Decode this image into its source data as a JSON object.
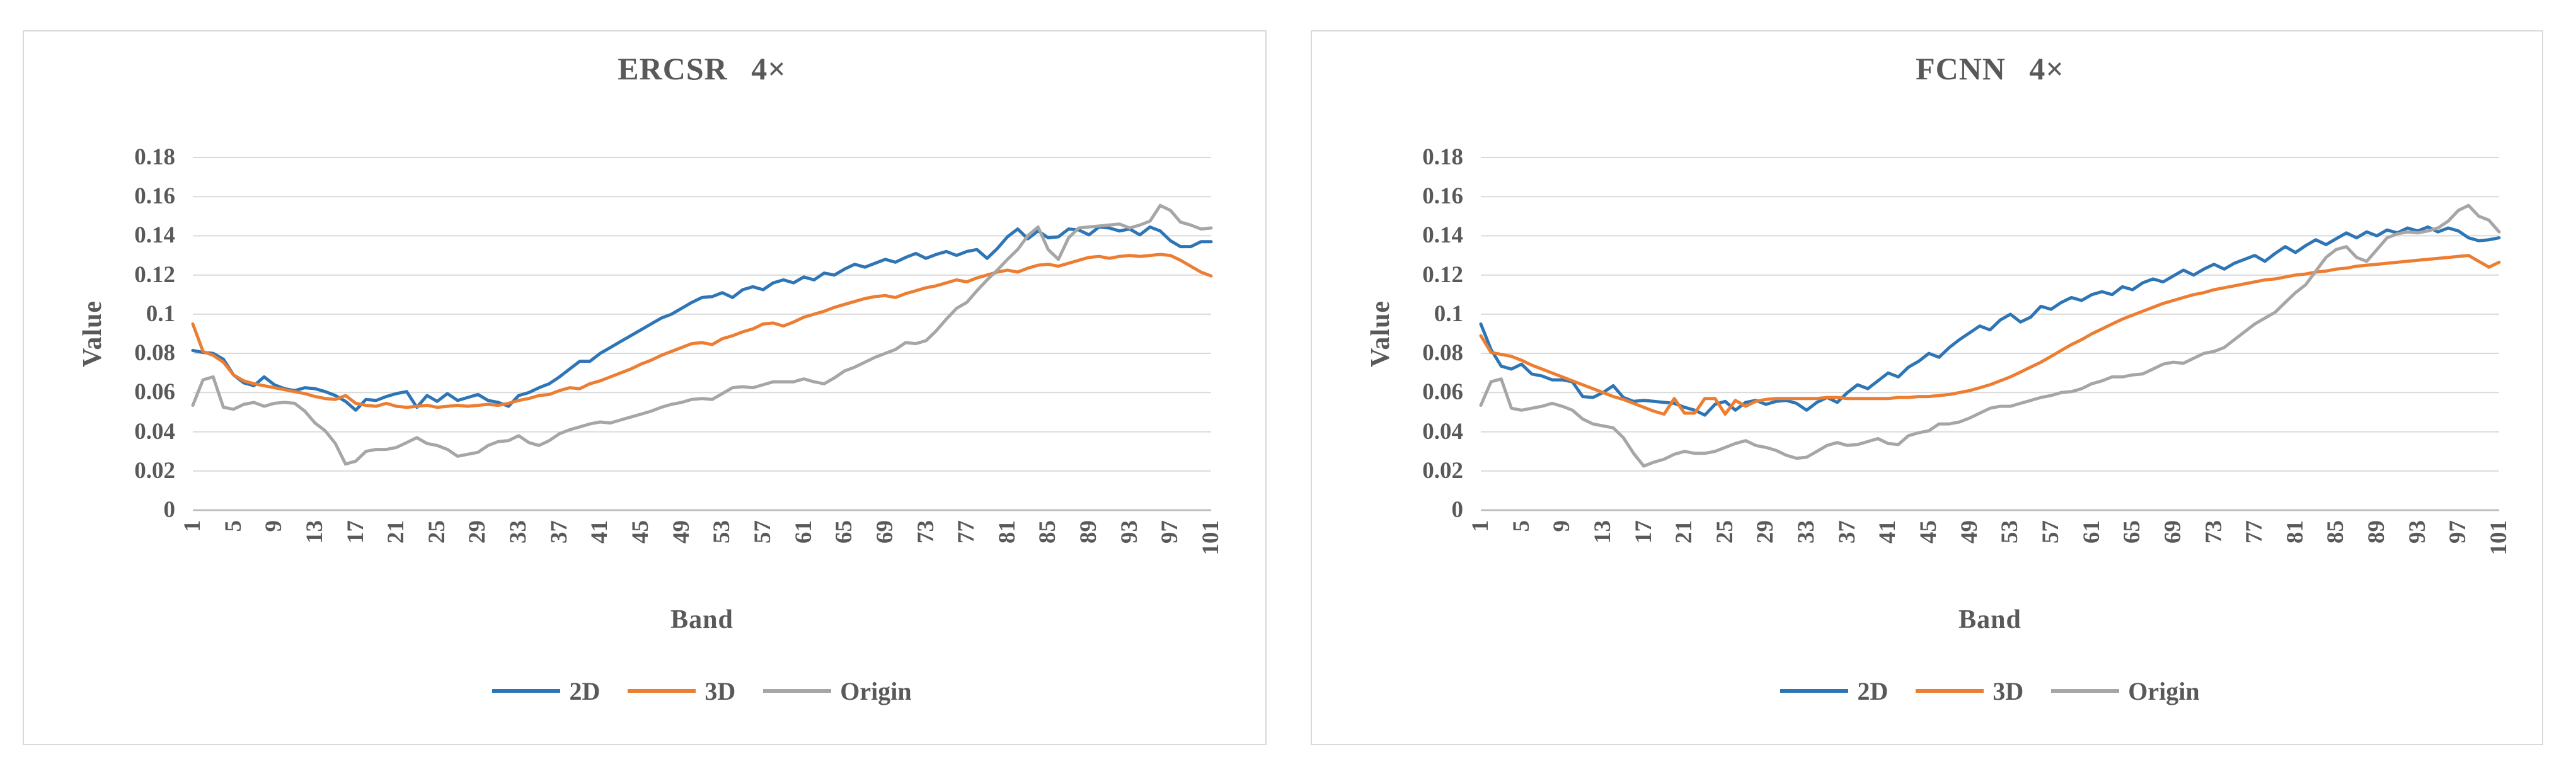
{
  "styles": {
    "text_color": "#595959",
    "gridline_color": "#D9D9D9",
    "axis_line_color": "#BFBFBF",
    "panel_border_color": "#D9D9D9",
    "series_colors": {
      "2D": "#2E75B6",
      "3D": "#ED7D31",
      "Origin": "#A6A6A6"
    }
  },
  "chart_data": [
    {
      "type": "line",
      "title": "ERCSR 4×",
      "xlabel": "Band",
      "ylabel": "Value",
      "x_start": 1,
      "x_end": 101,
      "ylim": [
        0,
        0.18
      ],
      "y_tick_step": 0.02,
      "grid": "horizontal",
      "legend_position": "bottom",
      "y_tick_labels": [
        "0.18",
        "0.16",
        "0.14",
        "0.12",
        "0.1",
        "0.08",
        "0.06",
        "0.04",
        "0.02",
        "0"
      ],
      "x_tick_labels": [
        "1",
        "5",
        "9",
        "13",
        "17",
        "21",
        "25",
        "29",
        "33",
        "37",
        "41",
        "45",
        "49",
        "53",
        "57",
        "61",
        "65",
        "69",
        "73",
        "77",
        "81",
        "85",
        "89",
        "93",
        "97",
        "101"
      ],
      "series": [
        {
          "name": "2D",
          "color": "#2E75B6",
          "values": [
            0.0815,
            0.0805,
            0.08,
            0.077,
            0.069,
            0.065,
            0.0635,
            0.068,
            0.064,
            0.062,
            0.061,
            0.0625,
            0.062,
            0.0605,
            0.0585,
            0.0555,
            0.051,
            0.0565,
            0.056,
            0.058,
            0.0595,
            0.0605,
            0.0525,
            0.0585,
            0.0555,
            0.0595,
            0.056,
            0.0575,
            0.059,
            0.056,
            0.055,
            0.053,
            0.0585,
            0.06,
            0.0625,
            0.0645,
            0.068,
            0.072,
            0.076,
            0.076,
            0.08,
            0.083,
            0.086,
            0.089,
            0.092,
            0.095,
            0.098,
            0.1,
            0.103,
            0.106,
            0.1085,
            0.109,
            0.111,
            0.1085,
            0.1125,
            0.114,
            0.1125,
            0.116,
            0.1175,
            0.116,
            0.119,
            0.1175,
            0.121,
            0.12,
            0.123,
            0.1255,
            0.124,
            0.126,
            0.128,
            0.1265,
            0.129,
            0.131,
            0.1285,
            0.1305,
            0.132,
            0.13,
            0.132,
            0.133,
            0.1285,
            0.1335,
            0.1395,
            0.1435,
            0.1385,
            0.1425,
            0.139,
            0.1395,
            0.1435,
            0.143,
            0.1405,
            0.1445,
            0.144,
            0.1425,
            0.1435,
            0.1405,
            0.1445,
            0.1425,
            0.1375,
            0.1345,
            0.1345,
            0.137,
            0.137
          ]
        },
        {
          "name": "3D",
          "color": "#ED7D31",
          "values": [
            0.095,
            0.081,
            0.079,
            0.0755,
            0.069,
            0.066,
            0.0645,
            0.0635,
            0.0625,
            0.0615,
            0.0605,
            0.0595,
            0.058,
            0.057,
            0.0565,
            0.0585,
            0.0545,
            0.0535,
            0.053,
            0.0545,
            0.053,
            0.0525,
            0.053,
            0.0535,
            0.0525,
            0.053,
            0.0535,
            0.053,
            0.0535,
            0.054,
            0.0535,
            0.0545,
            0.056,
            0.057,
            0.0585,
            0.059,
            0.061,
            0.0625,
            0.062,
            0.0645,
            0.066,
            0.068,
            0.07,
            0.072,
            0.0745,
            0.0765,
            0.079,
            0.081,
            0.083,
            0.085,
            0.0855,
            0.0845,
            0.0875,
            0.089,
            0.091,
            0.0925,
            0.095,
            0.0955,
            0.094,
            0.096,
            0.0985,
            0.1,
            0.1015,
            0.1035,
            0.105,
            0.1065,
            0.108,
            0.109,
            0.1095,
            0.1085,
            0.1105,
            0.112,
            0.1135,
            0.1145,
            0.116,
            0.1175,
            0.1165,
            0.1185,
            0.12,
            0.1215,
            0.1225,
            0.1215,
            0.1235,
            0.125,
            0.1255,
            0.1245,
            0.126,
            0.1275,
            0.129,
            0.1295,
            0.1285,
            0.1295,
            0.13,
            0.1295,
            0.13,
            0.1305,
            0.13,
            0.1275,
            0.1245,
            0.1215,
            0.1195
          ]
        },
        {
          "name": "Origin",
          "color": "#A6A6A6",
          "values": [
            0.0535,
            0.0665,
            0.068,
            0.0525,
            0.0515,
            0.054,
            0.055,
            0.053,
            0.0545,
            0.055,
            0.0545,
            0.0505,
            0.0445,
            0.0405,
            0.034,
            0.0235,
            0.025,
            0.03,
            0.031,
            0.031,
            0.032,
            0.0345,
            0.037,
            0.034,
            0.033,
            0.031,
            0.0275,
            0.0285,
            0.0295,
            0.033,
            0.035,
            0.0355,
            0.038,
            0.0345,
            0.033,
            0.0355,
            0.039,
            0.041,
            0.0425,
            0.044,
            0.045,
            0.0445,
            0.046,
            0.0475,
            0.049,
            0.0505,
            0.0525,
            0.054,
            0.055,
            0.0565,
            0.057,
            0.0565,
            0.0595,
            0.0625,
            0.063,
            0.0625,
            0.064,
            0.0655,
            0.0655,
            0.0655,
            0.067,
            0.0655,
            0.0645,
            0.0675,
            0.071,
            0.073,
            0.0755,
            0.078,
            0.08,
            0.082,
            0.0855,
            0.085,
            0.0865,
            0.0915,
            0.0975,
            0.103,
            0.106,
            0.112,
            0.1175,
            0.1225,
            0.128,
            0.133,
            0.14,
            0.1445,
            0.133,
            0.128,
            0.139,
            0.144,
            0.1445,
            0.145,
            0.1455,
            0.146,
            0.144,
            0.1455,
            0.1475,
            0.1555,
            0.153,
            0.147,
            0.1455,
            0.1435,
            0.144
          ]
        }
      ]
    },
    {
      "type": "line",
      "title": "FCNN 4×",
      "xlabel": "Band",
      "ylabel": "Value",
      "x_start": 1,
      "x_end": 101,
      "ylim": [
        0,
        0.18
      ],
      "y_tick_step": 0.02,
      "grid": "horizontal",
      "legend_position": "bottom",
      "y_tick_labels": [
        "0.18",
        "0.16",
        "0.14",
        "0.12",
        "0.1",
        "0.08",
        "0.06",
        "0.04",
        "0.02",
        "0"
      ],
      "x_tick_labels": [
        "1",
        "5",
        "9",
        "13",
        "17",
        "21",
        "25",
        "29",
        "33",
        "37",
        "41",
        "45",
        "49",
        "53",
        "57",
        "61",
        "65",
        "69",
        "73",
        "77",
        "81",
        "85",
        "89",
        "93",
        "97",
        "101"
      ],
      "series": [
        {
          "name": "2D",
          "color": "#2E75B6",
          "values": [
            0.095,
            0.082,
            0.0735,
            0.072,
            0.0745,
            0.0695,
            0.0685,
            0.0665,
            0.0665,
            0.0655,
            0.058,
            0.0575,
            0.06,
            0.0635,
            0.0575,
            0.0555,
            0.056,
            0.0555,
            0.055,
            0.0545,
            0.0525,
            0.051,
            0.0485,
            0.054,
            0.0555,
            0.051,
            0.055,
            0.056,
            0.054,
            0.0555,
            0.056,
            0.0545,
            0.051,
            0.055,
            0.0575,
            0.055,
            0.06,
            0.064,
            0.062,
            0.066,
            0.07,
            0.068,
            0.073,
            0.076,
            0.08,
            0.078,
            0.083,
            0.087,
            0.0905,
            0.094,
            0.092,
            0.097,
            0.1,
            0.096,
            0.0985,
            0.104,
            0.1025,
            0.106,
            0.1085,
            0.107,
            0.11,
            0.1115,
            0.11,
            0.114,
            0.1125,
            0.116,
            0.118,
            0.1165,
            0.1195,
            0.1225,
            0.12,
            0.123,
            0.1255,
            0.123,
            0.126,
            0.128,
            0.13,
            0.127,
            0.131,
            0.1345,
            0.1315,
            0.135,
            0.138,
            0.1355,
            0.1385,
            0.1415,
            0.139,
            0.142,
            0.14,
            0.143,
            0.1415,
            0.144,
            0.1425,
            0.1445,
            0.142,
            0.144,
            0.1425,
            0.139,
            0.1375,
            0.138,
            0.139
          ]
        },
        {
          "name": "3D",
          "color": "#ED7D31",
          "values": [
            0.089,
            0.0805,
            0.0795,
            0.0785,
            0.0765,
            0.074,
            0.072,
            0.07,
            0.068,
            0.066,
            0.064,
            0.062,
            0.06,
            0.058,
            0.0565,
            0.0545,
            0.0525,
            0.0505,
            0.049,
            0.057,
            0.0495,
            0.0495,
            0.057,
            0.057,
            0.049,
            0.056,
            0.053,
            0.0555,
            0.0565,
            0.057,
            0.057,
            0.057,
            0.057,
            0.057,
            0.0575,
            0.0575,
            0.057,
            0.057,
            0.057,
            0.057,
            0.057,
            0.0575,
            0.0575,
            0.058,
            0.058,
            0.0585,
            0.059,
            0.06,
            0.061,
            0.0625,
            0.064,
            0.066,
            0.068,
            0.0705,
            0.073,
            0.0755,
            0.0785,
            0.0815,
            0.0845,
            0.087,
            0.09,
            0.0925,
            0.095,
            0.0975,
            0.0995,
            0.1015,
            0.1035,
            0.1055,
            0.107,
            0.1085,
            0.11,
            0.111,
            0.1125,
            0.1135,
            0.1145,
            0.1155,
            0.1165,
            0.1175,
            0.118,
            0.119,
            0.12,
            0.1205,
            0.1215,
            0.122,
            0.123,
            0.1235,
            0.1245,
            0.125,
            0.1255,
            0.126,
            0.1265,
            0.127,
            0.1275,
            0.128,
            0.1285,
            0.129,
            0.1295,
            0.13,
            0.127,
            0.124,
            0.1265
          ]
        },
        {
          "name": "Origin",
          "color": "#A6A6A6",
          "values": [
            0.0535,
            0.0655,
            0.067,
            0.052,
            0.051,
            0.052,
            0.053,
            0.0545,
            0.053,
            0.051,
            0.0465,
            0.044,
            0.043,
            0.042,
            0.037,
            0.029,
            0.0225,
            0.0245,
            0.026,
            0.0285,
            0.03,
            0.029,
            0.029,
            0.03,
            0.032,
            0.034,
            0.0355,
            0.033,
            0.032,
            0.0305,
            0.028,
            0.0265,
            0.027,
            0.03,
            0.033,
            0.0345,
            0.033,
            0.0335,
            0.035,
            0.0365,
            0.034,
            0.0335,
            0.038,
            0.0395,
            0.0405,
            0.044,
            0.044,
            0.045,
            0.047,
            0.0495,
            0.052,
            0.053,
            0.053,
            0.0545,
            0.056,
            0.0575,
            0.0585,
            0.06,
            0.0605,
            0.062,
            0.0645,
            0.066,
            0.068,
            0.068,
            0.069,
            0.0695,
            0.072,
            0.0745,
            0.0755,
            0.075,
            0.0775,
            0.08,
            0.081,
            0.083,
            0.087,
            0.091,
            0.095,
            0.098,
            0.101,
            0.106,
            0.111,
            0.115,
            0.122,
            0.129,
            0.133,
            0.1345,
            0.129,
            0.127,
            0.133,
            0.139,
            0.141,
            0.142,
            0.1415,
            0.1425,
            0.144,
            0.1475,
            0.153,
            0.1555,
            0.15,
            0.148,
            0.142
          ]
        }
      ]
    }
  ]
}
